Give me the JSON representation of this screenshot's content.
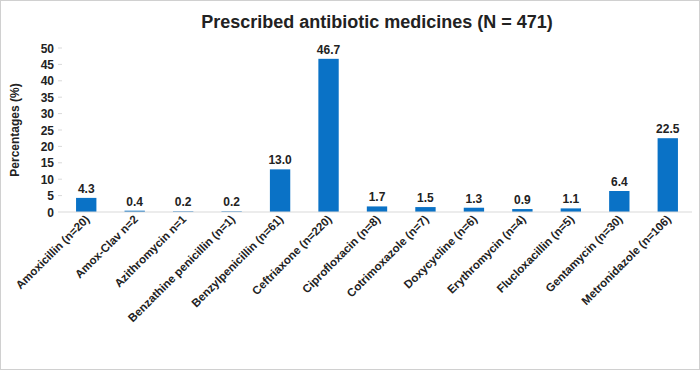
{
  "chart_data": {
    "type": "bar",
    "title": "Prescribed antibiotic medicines (N = 471)",
    "y_label": "Percentages (%)",
    "categories": [
      "Amoxicillin (n=20)",
      "Amox-Clav n=2",
      "Azithromycin n=1",
      "Benzathine penicillin (n=1)",
      "Benzylpenicillin (n=61)",
      "Ceftriaxone (n=220)",
      "Ciprofloxacin (n=8)",
      "Cotrimoxazole (n=7)",
      "Doxycycline (n=6)",
      "Erythromycin (n=4)",
      "Flucloxacillin (n=5)",
      "Gentamycin (n=30)",
      "Metronidazole (n=106)"
    ],
    "values": [
      4.3,
      0.4,
      0.2,
      0.2,
      13.0,
      46.7,
      1.7,
      1.5,
      1.3,
      0.9,
      1.1,
      6.4,
      22.5
    ],
    "value_labels": [
      "4.3",
      "0.4",
      "0.2",
      "0.2",
      "13.0",
      "46.7",
      "1.7",
      "1.5",
      "1.3",
      "0.9",
      "1.1",
      "6.4",
      "22.5"
    ],
    "color": "#0a72c6",
    "ylim": [
      0,
      50
    ],
    "yticks": [
      0,
      5,
      10,
      15,
      20,
      25,
      30,
      35,
      40,
      45,
      50
    ],
    "grid": false,
    "data_labels": true
  }
}
